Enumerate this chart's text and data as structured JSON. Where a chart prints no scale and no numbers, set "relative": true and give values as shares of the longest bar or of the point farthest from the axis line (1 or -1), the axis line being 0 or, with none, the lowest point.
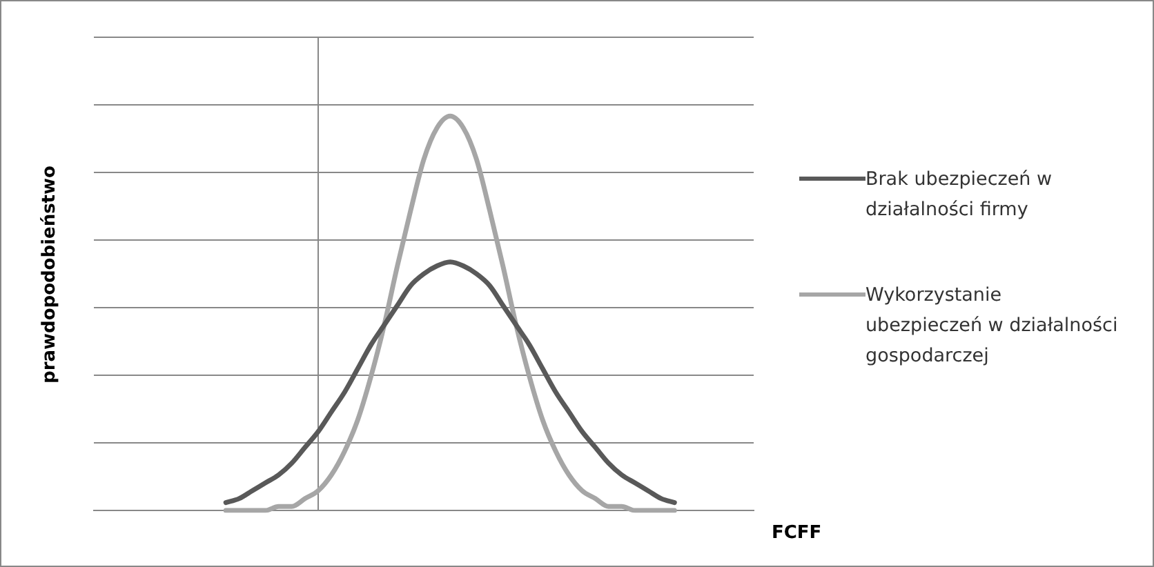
{
  "chart_data": {
    "type": "line",
    "relative": true,
    "ylabel": "prawdopodobieństwo",
    "xlabel": "FCFF",
    "grid": "y",
    "legend": "right",
    "marker": "none",
    "line_style": "solid",
    "tick_labels": false,
    "categories": [
      null,
      null,
      null,
      null,
      null,
      null,
      null,
      null,
      null,
      null,
      null,
      null,
      null,
      null,
      null,
      null,
      null,
      null,
      null,
      null,
      null,
      null,
      null,
      null,
      null,
      null,
      null,
      null,
      null,
      null,
      null,
      null,
      null,
      null,
      null,
      null,
      null,
      null,
      null,
      null,
      null,
      null,
      null,
      null,
      null,
      null,
      null,
      null,
      null,
      null,
      null
    ],
    "series": [
      {
        "name": "Brak ubezpieczeń w działalności firmy",
        "color": "#595959",
        "values": [
          null,
          null,
          null,
          null,
          null,
          null,
          null,
          null,
          null,
          null,
          0.02,
          0.03,
          0.05,
          0.07,
          0.09,
          0.12,
          0.16,
          0.2,
          0.25,
          0.3,
          0.36,
          0.42,
          0.47,
          0.52,
          0.57,
          0.6,
          0.62,
          0.63,
          0.62,
          0.6,
          0.57,
          0.52,
          0.47,
          0.42,
          0.36,
          0.3,
          0.25,
          0.2,
          0.16,
          0.12,
          0.09,
          0.07,
          0.05,
          0.03,
          0.02,
          null,
          null,
          null,
          null,
          null,
          null
        ]
      },
      {
        "name": "Wykorzystanie ubezpieczeń w działalności gospodarczej",
        "color": "#a6a6a6",
        "values": [
          null,
          null,
          null,
          null,
          null,
          null,
          null,
          null,
          null,
          null,
          0,
          0,
          0,
          0,
          0.01,
          0.01,
          0.03,
          0.05,
          0.09,
          0.15,
          0.23,
          0.34,
          0.47,
          0.62,
          0.76,
          0.89,
          0.97,
          1,
          0.97,
          0.89,
          0.76,
          0.62,
          0.47,
          0.34,
          0.23,
          0.15,
          0.09,
          0.05,
          0.03,
          0.01,
          0.01,
          0,
          0,
          0,
          0,
          null,
          null,
          null,
          null,
          null,
          null
        ]
      }
    ]
  }
}
